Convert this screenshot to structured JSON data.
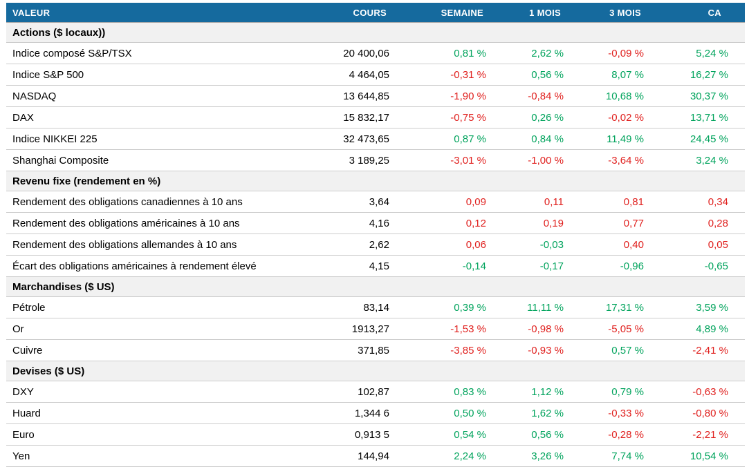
{
  "colors": {
    "header_bg": "#156A9E",
    "header_text": "#FFFFFF",
    "positive": "#00A35C",
    "negative": "#E0201E",
    "section_bg": "#F1F1F1",
    "row_border": "#CCCCCC",
    "section_top_border": "#A9A9A9"
  },
  "chart_data": {
    "type": "table",
    "columns": [
      "VALEUR",
      "COURS",
      "SEMAINE",
      "1 MOIS",
      "3 MOIS",
      "CA"
    ],
    "sections": [
      {
        "title": "Actions ($ locaux))",
        "rows": [
          {
            "label": "Indice composé S&P/TSX",
            "cours": "20 400,06",
            "changes": [
              {
                "text": "0,81 %",
                "tone": "pos"
              },
              {
                "text": "2,62 %",
                "tone": "pos"
              },
              {
                "text": "-0,09 %",
                "tone": "neg"
              },
              {
                "text": "5,24 %",
                "tone": "pos"
              }
            ]
          },
          {
            "label": "Indice S&P 500",
            "cours": "4 464,05",
            "changes": [
              {
                "text": "-0,31 %",
                "tone": "neg"
              },
              {
                "text": "0,56 %",
                "tone": "pos"
              },
              {
                "text": "8,07 %",
                "tone": "pos"
              },
              {
                "text": "16,27 %",
                "tone": "pos"
              }
            ]
          },
          {
            "label": "NASDAQ",
            "cours": "13 644,85",
            "changes": [
              {
                "text": "-1,90 %",
                "tone": "neg"
              },
              {
                "text": "-0,84 %",
                "tone": "neg"
              },
              {
                "text": "10,68 %",
                "tone": "pos"
              },
              {
                "text": "30,37 %",
                "tone": "pos"
              }
            ]
          },
          {
            "label": "DAX",
            "cours": "15 832,17",
            "changes": [
              {
                "text": "-0,75 %",
                "tone": "neg"
              },
              {
                "text": "0,26 %",
                "tone": "pos"
              },
              {
                "text": "-0,02 %",
                "tone": "neg"
              },
              {
                "text": "13,71 %",
                "tone": "pos"
              }
            ]
          },
          {
            "label": "Indice NIKKEI 225",
            "cours": "32 473,65",
            "changes": [
              {
                "text": "0,87 %",
                "tone": "pos"
              },
              {
                "text": "0,84 %",
                "tone": "pos"
              },
              {
                "text": "11,49 %",
                "tone": "pos"
              },
              {
                "text": "24,45 %",
                "tone": "pos"
              }
            ]
          },
          {
            "label": "Shanghai Composite",
            "cours": "3 189,25",
            "changes": [
              {
                "text": "-3,01 %",
                "tone": "neg"
              },
              {
                "text": "-1,00 %",
                "tone": "neg"
              },
              {
                "text": "-3,64 %",
                "tone": "neg"
              },
              {
                "text": "3,24 %",
                "tone": "pos"
              }
            ]
          }
        ]
      },
      {
        "title": "Revenu fixe (rendement en %)",
        "rows": [
          {
            "label": "Rendement des obligations canadiennes à 10 ans",
            "cours": "3,64",
            "changes": [
              {
                "text": "0,09",
                "tone": "neg"
              },
              {
                "text": "0,11",
                "tone": "neg"
              },
              {
                "text": "0,81",
                "tone": "neg"
              },
              {
                "text": "0,34",
                "tone": "neg"
              }
            ]
          },
          {
            "label": "Rendement des obligations américaines à 10 ans",
            "cours": "4,16",
            "changes": [
              {
                "text": "0,12",
                "tone": "neg"
              },
              {
                "text": "0,19",
                "tone": "neg"
              },
              {
                "text": "0,77",
                "tone": "neg"
              },
              {
                "text": "0,28",
                "tone": "neg"
              }
            ]
          },
          {
            "label": "Rendement des obligations allemandes à 10 ans",
            "cours": "2,62",
            "changes": [
              {
                "text": "0,06",
                "tone": "neg"
              },
              {
                "text": "-0,03",
                "tone": "pos"
              },
              {
                "text": "0,40",
                "tone": "neg"
              },
              {
                "text": "0,05",
                "tone": "neg"
              }
            ]
          },
          {
            "label": "Écart des obligations américaines à rendement élevé",
            "cours": "4,15",
            "changes": [
              {
                "text": "-0,14",
                "tone": "pos"
              },
              {
                "text": "-0,17",
                "tone": "pos"
              },
              {
                "text": "-0,96",
                "tone": "pos"
              },
              {
                "text": "-0,65",
                "tone": "pos"
              }
            ]
          }
        ]
      },
      {
        "title": "Marchandises ($ US)",
        "rows": [
          {
            "label": "Pétrole",
            "cours": "83,14",
            "changes": [
              {
                "text": "0,39 %",
                "tone": "pos"
              },
              {
                "text": "11,11 %",
                "tone": "pos"
              },
              {
                "text": "17,31 %",
                "tone": "pos"
              },
              {
                "text": "3,59 %",
                "tone": "pos"
              }
            ]
          },
          {
            "label": "Or",
            "cours": "1913,27",
            "changes": [
              {
                "text": "-1,53 %",
                "tone": "neg"
              },
              {
                "text": "-0,98 %",
                "tone": "neg"
              },
              {
                "text": "-5,05 %",
                "tone": "neg"
              },
              {
                "text": "4,89 %",
                "tone": "pos"
              }
            ]
          },
          {
            "label": "Cuivre",
            "cours": "371,85",
            "changes": [
              {
                "text": "-3,85 %",
                "tone": "neg"
              },
              {
                "text": "-0,93 %",
                "tone": "neg"
              },
              {
                "text": "0,57 %",
                "tone": "pos"
              },
              {
                "text": "-2,41 %",
                "tone": "neg"
              }
            ]
          }
        ]
      },
      {
        "title": "Devises ($ US)",
        "rows": [
          {
            "label": "DXY",
            "cours": "102,87",
            "changes": [
              {
                "text": "0,83 %",
                "tone": "pos"
              },
              {
                "text": "1,12 %",
                "tone": "pos"
              },
              {
                "text": "0,79 %",
                "tone": "pos"
              },
              {
                "text": "-0,63 %",
                "tone": "neg"
              }
            ]
          },
          {
            "label": "Huard",
            "cours": "1,344 6",
            "changes": [
              {
                "text": "0,50 %",
                "tone": "pos"
              },
              {
                "text": "1,62 %",
                "tone": "pos"
              },
              {
                "text": "-0,33 %",
                "tone": "neg"
              },
              {
                "text": "-0,80 %",
                "tone": "neg"
              }
            ]
          },
          {
            "label": "Euro",
            "cours": "0,913 5",
            "changes": [
              {
                "text": "0,54 %",
                "tone": "pos"
              },
              {
                "text": "0,56 %",
                "tone": "pos"
              },
              {
                "text": "-0,28 %",
                "tone": "neg"
              },
              {
                "text": "-2,21 %",
                "tone": "neg"
              }
            ]
          },
          {
            "label": "Yen",
            "cours": "144,94",
            "changes": [
              {
                "text": "2,24 %",
                "tone": "pos"
              },
              {
                "text": "3,26 %",
                "tone": "pos"
              },
              {
                "text": "7,74 %",
                "tone": "pos"
              },
              {
                "text": "10,54 %",
                "tone": "pos"
              }
            ]
          }
        ]
      }
    ]
  }
}
